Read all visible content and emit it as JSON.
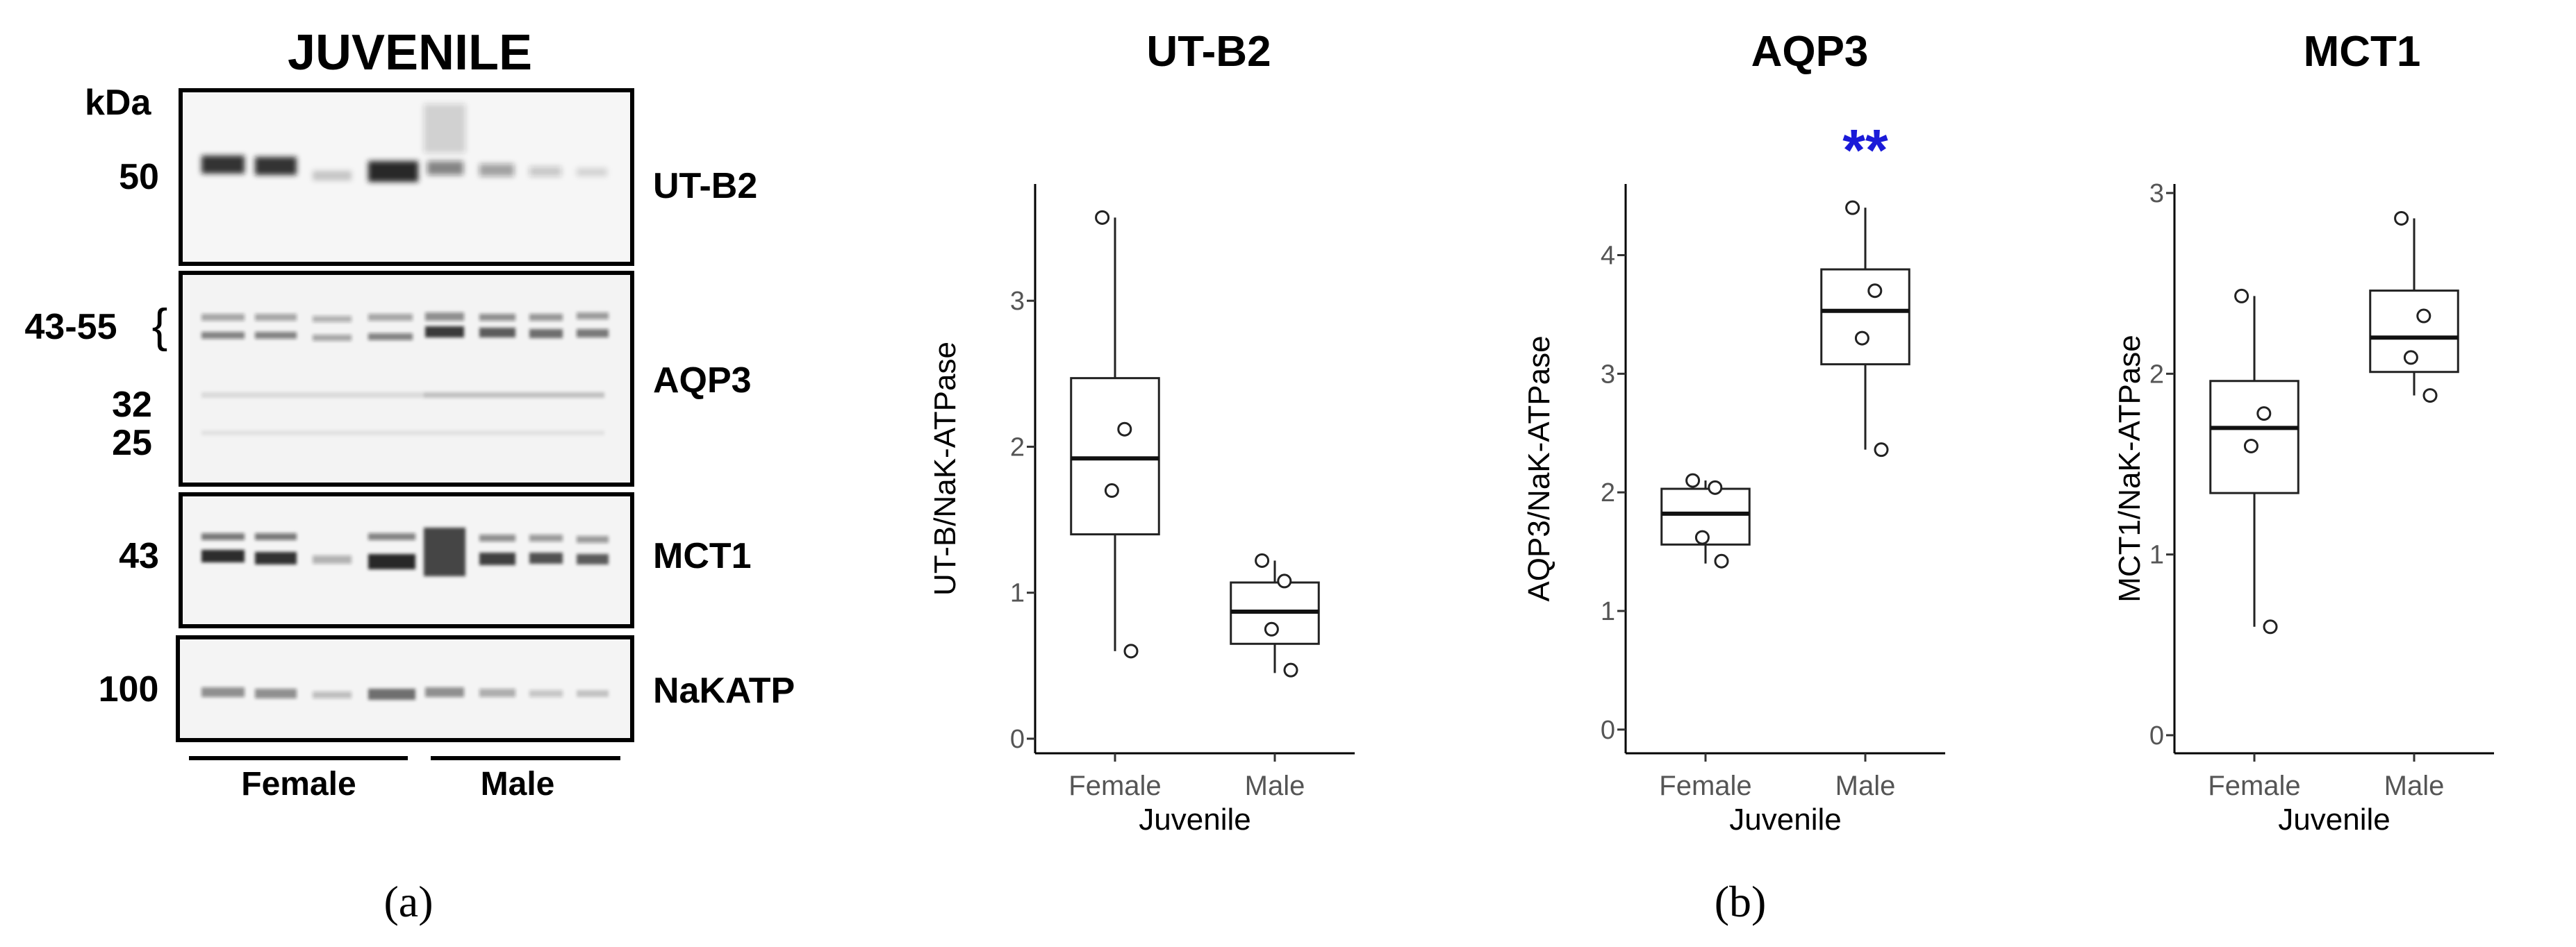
{
  "figure": {
    "panel_a_caption": "(a)",
    "panel_b_caption": "(b)"
  },
  "blot": {
    "title": "JUVENILE",
    "kda_label": "kDa",
    "mw_labels": [
      "50",
      "43-55",
      "32",
      "25",
      "43",
      "100"
    ],
    "bracket_glyph": "{",
    "panels": [
      {
        "label": "UT-B2",
        "mw": "50"
      },
      {
        "label": "AQP3",
        "mw": "43-55"
      },
      {
        "label": "MCT1",
        "mw": "43"
      },
      {
        "label": "NaKATP",
        "mw": "100"
      }
    ],
    "group_labels": [
      "Female",
      "Male"
    ]
  },
  "chart_data": [
    {
      "type": "boxplot",
      "title": "UT-B2",
      "xlabel": "Juvenile",
      "ylabel": "UT-B/NaK-ATPase",
      "categories": [
        "Female",
        "Male"
      ],
      "ylim": [
        -0.1,
        3.8
      ],
      "yticks": [
        0,
        1,
        2,
        3
      ],
      "boxes": [
        {
          "category": "Female",
          "min": 0.6,
          "q1": 1.4,
          "median": 1.92,
          "q3": 2.47,
          "max": 3.57
        },
        {
          "category": "Male",
          "min": 0.45,
          "q1": 0.65,
          "median": 0.87,
          "q3": 1.07,
          "max": 1.22
        }
      ],
      "points": [
        {
          "category": "Female",
          "values": [
            3.57,
            2.12,
            1.7,
            0.6
          ]
        },
        {
          "category": "Male",
          "values": [
            1.22,
            1.08,
            0.75,
            0.47
          ]
        }
      ],
      "annotation": ""
    },
    {
      "type": "boxplot",
      "title": "AQP3",
      "xlabel": "Juvenile",
      "ylabel": "AQP3/NaK-ATPase",
      "categories": [
        "Female",
        "Male"
      ],
      "ylim": [
        -0.2,
        4.6
      ],
      "yticks": [
        0,
        1,
        2,
        3,
        4
      ],
      "boxes": [
        {
          "category": "Female",
          "min": 1.4,
          "q1": 1.56,
          "median": 1.82,
          "q3": 2.03,
          "max": 2.1
        },
        {
          "category": "Male",
          "min": 2.36,
          "q1": 3.08,
          "median": 3.53,
          "q3": 3.88,
          "max": 4.4
        }
      ],
      "points": [
        {
          "category": "Female",
          "values": [
            2.1,
            2.04,
            1.62,
            1.42
          ]
        },
        {
          "category": "Male",
          "values": [
            4.4,
            3.7,
            3.3,
            2.36
          ]
        }
      ],
      "annotation": "**",
      "annotation_color": "#1a1ad8"
    },
    {
      "type": "boxplot",
      "title": "MCT1",
      "xlabel": "Juvenile",
      "ylabel": "MCT1/NaK-ATPase",
      "categories": [
        "Female",
        "Male"
      ],
      "ylim": [
        -0.1,
        3.05
      ],
      "yticks": [
        0,
        1,
        2,
        3
      ],
      "boxes": [
        {
          "category": "Female",
          "min": 0.6,
          "q1": 1.34,
          "median": 1.7,
          "q3": 1.96,
          "max": 2.43
        },
        {
          "category": "Male",
          "min": 1.88,
          "q1": 2.01,
          "median": 2.2,
          "q3": 2.46,
          "max": 2.86
        }
      ],
      "points": [
        {
          "category": "Female",
          "values": [
            2.43,
            1.78,
            1.6,
            0.6
          ]
        },
        {
          "category": "Male",
          "values": [
            2.86,
            2.32,
            2.09,
            1.88
          ]
        }
      ],
      "annotation": ""
    }
  ]
}
